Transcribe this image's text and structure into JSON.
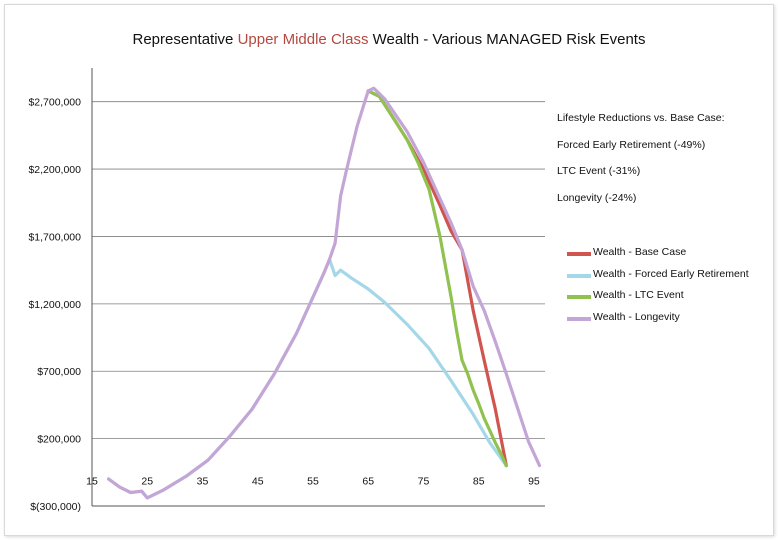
{
  "title": {
    "before": "Representative ",
    "accent": "Upper Middle Class",
    "after": " Wealth - Various MANAGED Risk Events"
  },
  "notes": [
    "Lifestyle Reductions vs. Base Case:",
    "Forced Early Retirement (-49%)",
    "LTC Event (-31%)",
    "Longevity (-24%)"
  ],
  "colors": {
    "base": "#d0554f",
    "forced": "#a4d8e8",
    "ltc": "#8fc24e",
    "longevity": "#c3a6d6",
    "accent": "#b5483f",
    "grid": "#7f7f7f"
  },
  "chart_data": {
    "type": "line",
    "title": "Representative Upper Middle Class Wealth - Various MANAGED Risk Events",
    "xlabel": "",
    "ylabel": "",
    "xlim": [
      15,
      97
    ],
    "ylim": [
      -300000,
      2950000
    ],
    "x_ticks": [
      15,
      25,
      35,
      45,
      55,
      65,
      75,
      85,
      95
    ],
    "x_tick_labels": [
      "15",
      "25",
      "35",
      "45",
      "55",
      "65",
      "75",
      "85",
      "95"
    ],
    "y_ticks": [
      -300000,
      200000,
      700000,
      1200000,
      1700000,
      2200000,
      2700000
    ],
    "y_tick_labels": [
      "$(300,000)",
      "$200,000",
      "$700,000",
      "$1,200,000",
      "$1,700,000",
      "$2,200,000",
      "$2,700,000"
    ],
    "grid": "horizontal",
    "legend_position": "right",
    "series": [
      {
        "name": "Wealth - Base Case",
        "color": "#d0554f",
        "x": [
          65,
          67,
          70,
          72,
          75,
          78,
          80,
          82,
          84,
          86,
          88,
          90
        ],
        "y": [
          2780000,
          2740000,
          2550000,
          2420000,
          2200000,
          1930000,
          1740000,
          1600000,
          1150000,
          780000,
          420000,
          0
        ]
      },
      {
        "name": "Wealth - Forced Early Retirement",
        "color": "#a4d8e8",
        "x": [
          18,
          20,
          22,
          24,
          25,
          28,
          32,
          36,
          40,
          44,
          48,
          52,
          55,
          57,
          58,
          59,
          60,
          62,
          65,
          68,
          72,
          76,
          80,
          84,
          87,
          90
        ],
        "y": [
          -100000,
          -160000,
          -200000,
          -190000,
          -240000,
          -180000,
          -80000,
          40000,
          220000,
          420000,
          680000,
          980000,
          1250000,
          1430000,
          1530000,
          1410000,
          1450000,
          1390000,
          1310000,
          1210000,
          1050000,
          870000,
          630000,
          380000,
          170000,
          0
        ]
      },
      {
        "name": "Wealth - LTC Event",
        "color": "#8fc24e",
        "x": [
          65,
          67,
          70,
          72,
          74,
          76,
          78,
          80,
          81,
          82,
          83,
          84,
          85,
          86,
          87,
          88,
          89,
          90
        ],
        "y": [
          2780000,
          2740000,
          2550000,
          2420000,
          2250000,
          2050000,
          1700000,
          1250000,
          1000000,
          780000,
          680000,
          560000,
          460000,
          350000,
          260000,
          170000,
          90000,
          0
        ]
      },
      {
        "name": "Wealth - Longevity",
        "color": "#c3a6d6",
        "x": [
          18,
          20,
          22,
          24,
          25,
          28,
          32,
          36,
          40,
          44,
          48,
          52,
          55,
          57,
          58,
          59,
          60,
          61,
          62,
          63,
          65,
          66,
          68,
          70,
          72,
          75,
          78,
          80,
          81,
          82,
          84,
          86,
          88,
          90,
          92,
          94,
          96
        ],
        "y": [
          -100000,
          -160000,
          -200000,
          -190000,
          -240000,
          -180000,
          -80000,
          40000,
          220000,
          420000,
          680000,
          980000,
          1250000,
          1430000,
          1530000,
          1650000,
          2000000,
          2180000,
          2350000,
          2520000,
          2780000,
          2800000,
          2720000,
          2600000,
          2480000,
          2250000,
          1980000,
          1800000,
          1700000,
          1600000,
          1330000,
          1150000,
          920000,
          680000,
          430000,
          180000,
          0
        ]
      }
    ]
  }
}
